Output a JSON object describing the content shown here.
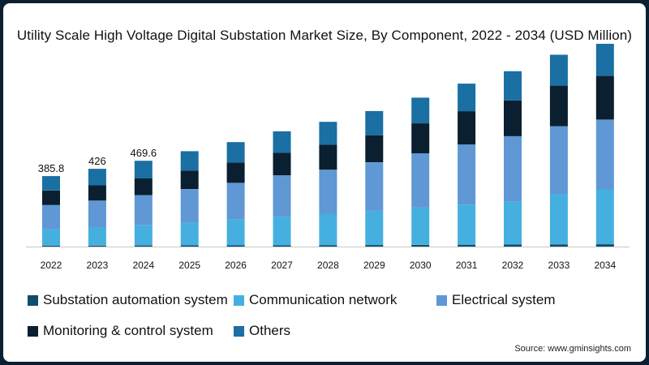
{
  "chart_data": {
    "type": "bar",
    "stacked": true,
    "title": "Utility Scale High Voltage Digital Substation Market Size, By Component, 2022 - 2034 (USD Million)",
    "categories": [
      "2022",
      "2023",
      "2024",
      "2025",
      "2026",
      "2027",
      "2028",
      "2029",
      "2030",
      "2031",
      "2032",
      "2033",
      "2034"
    ],
    "series": [
      {
        "name": "Substation automation system",
        "color": "#0d4d6e",
        "values": [
          5,
          5.5,
          6,
          6.5,
          7,
          7.5,
          8,
          8.5,
          9.5,
          10,
          11,
          12,
          13
        ]
      },
      {
        "name": "Communication network",
        "color": "#45b0e0",
        "values": [
          90,
          101,
          113,
          125,
          141,
          156,
          172,
          188,
          204,
          220,
          236,
          276,
          300
        ]
      },
      {
        "name": "Electrical system",
        "color": "#5f98d4",
        "values": [
          133,
          145,
          163,
          183,
          201,
          226,
          241,
          265,
          297,
          329,
          357,
          371,
          382
        ]
      },
      {
        "name": "Monitoring & control system",
        "color": "#0a1f2f",
        "values": [
          79,
          85,
          91,
          101,
          111,
          124,
          137,
          148,
          164,
          182,
          196,
          222,
          239
        ]
      },
      {
        "name": "Others",
        "color": "#1a6fa3",
        "values": [
          78.8,
          89.5,
          96.6,
          106.5,
          112,
          117.5,
          125,
          132.5,
          140.5,
          151,
          160,
          169,
          176
        ]
      }
    ],
    "data_labels": {
      "2022": "385.8",
      "2023": "426",
      "2024": "469.6"
    },
    "ylim": [
      0,
      1110
    ],
    "xlabel": "",
    "ylabel": "",
    "grid": false,
    "legend_position": "bottom"
  },
  "legend": [
    {
      "label": "Substation automation system",
      "color": "#0d4d6e"
    },
    {
      "label": "Communication network",
      "color": "#45b0e0"
    },
    {
      "label": "Electrical system",
      "color": "#5f98d4"
    },
    {
      "label": "Monitoring & control system",
      "color": "#0a1f2f"
    },
    {
      "label": "Others",
      "color": "#1a6fa3"
    }
  ],
  "source": "Source: www.gminsights.com"
}
